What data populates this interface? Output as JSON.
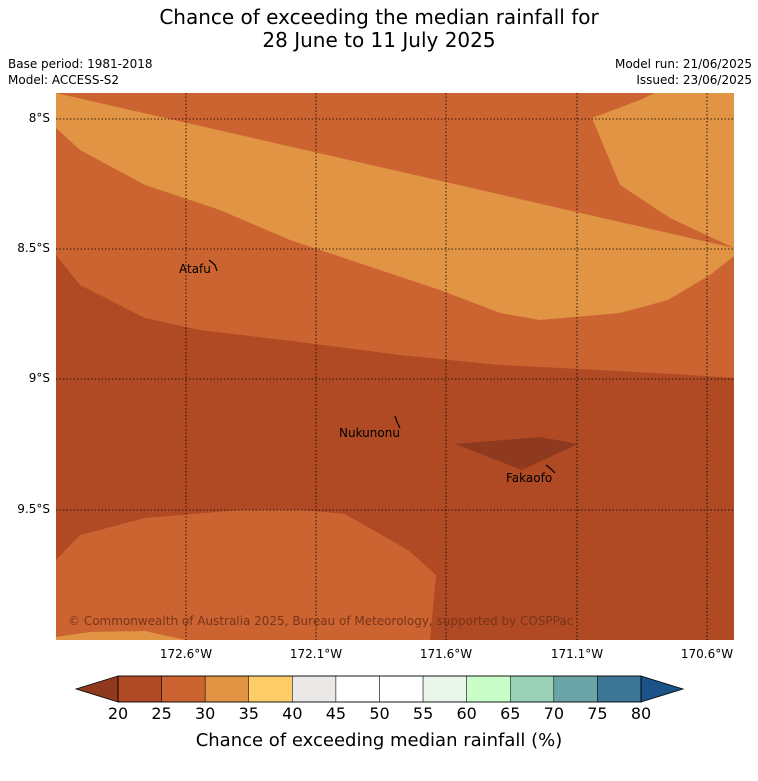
{
  "title": {
    "line1": "Chance of exceeding the median rainfall for",
    "line2": "28 June to 11 July 2025"
  },
  "meta": {
    "base_period": "Base period: 1981-2018",
    "model": "Model: ACCESS-S2",
    "model_run": "Model run: 21/06/2025",
    "issued": "Issued: 23/06/2025"
  },
  "map": {
    "lat_labels": [
      "8°S",
      "8.5°S",
      "9°S",
      "9.5°S"
    ],
    "lon_labels": [
      "172.6°W",
      "172.1°W",
      "171.6°W",
      "171.1°W",
      "170.6°W"
    ],
    "places": [
      {
        "name": "Atafu"
      },
      {
        "name": "Nukunonu"
      },
      {
        "name": "Fakaofo"
      }
    ],
    "copyright": "© Commonwealth of Australia 2025, Bureau of Meteorology, supported by COSPPac"
  },
  "colorbar": {
    "ticks": [
      "20",
      "25",
      "30",
      "35",
      "40",
      "45",
      "50",
      "55",
      "60",
      "65",
      "70",
      "75",
      "80"
    ],
    "colors": [
      "#b04a24",
      "#cc6432",
      "#e09444",
      "#fecd68",
      "#ebe9e7",
      "#ffffff",
      "#ffffff",
      "#e9f6e9",
      "#c9fec9",
      "#9ad0b5",
      "#6ba4a6",
      "#3c7595"
    ],
    "under_color": "#8f3a1e",
    "over_color": "#1b5287",
    "label": "Chance of exceeding median rainfall (%)"
  }
}
